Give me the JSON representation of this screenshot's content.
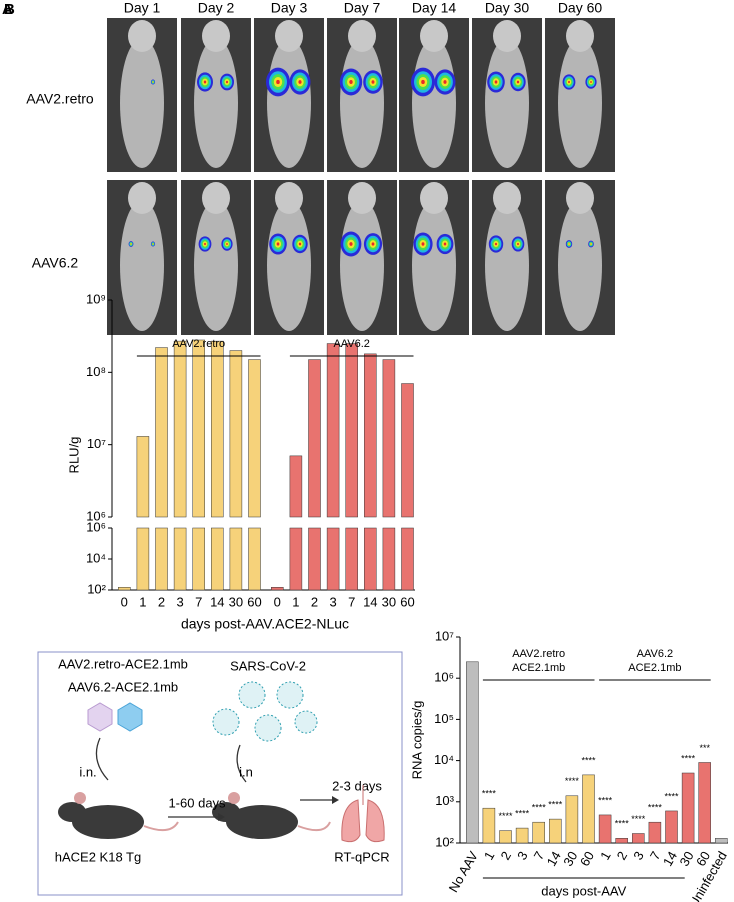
{
  "panel_labels": [
    "A",
    "B"
  ],
  "panel_a": {
    "days": [
      "Day 1",
      "Day 2",
      "Day 3",
      "Day 7",
      "Day 14",
      "Day 30",
      "Day 60"
    ],
    "rows": [
      "AAV2.retro",
      "AAV6.2"
    ]
  },
  "schematic": {
    "vectors": [
      "AAV2.retro-ACE2.1mb",
      "AAV6.2-ACE2.1mb"
    ],
    "virus": "SARS-CoV-2",
    "route1": "i.n.",
    "route2": "i.n",
    "interval1": "1-60 days",
    "interval2": "2-3 days",
    "mouse": "hACE2 K18 Tg",
    "readout": "RT-qPCR"
  },
  "chart_data": [
    {
      "type": "bar",
      "log_y": true,
      "y_label": "RLU/g",
      "x_label": "days post-AAV.ACE2-NLuc",
      "segments": [
        {
          "ylim": [
            100,
            1000000
          ],
          "yticks": [
            {
              "value": 100,
              "label": "10²"
            },
            {
              "value": 10000,
              "label": "10⁴"
            },
            {
              "value": 1000000,
              "label": "10⁶"
            }
          ]
        },
        {
          "ylim": [
            1000000,
            1000000000
          ],
          "yticks": [
            {
              "value": 1000000,
              "label": "10⁶"
            },
            {
              "value": 10000000,
              "label": "10⁷"
            },
            {
              "value": 100000000,
              "label": "10⁸"
            },
            {
              "value": 1000000000,
              "label": "10⁹"
            }
          ]
        }
      ],
      "series": [
        {
          "name": "AAV2.retro",
          "color": "#f6d27a",
          "categories": [
            "0",
            "1",
            "2",
            "3",
            "7",
            "14",
            "30",
            "60"
          ],
          "values": [
            150,
            13000000,
            220000000,
            270000000,
            280000000,
            270000000,
            200000000,
            150000000
          ]
        },
        {
          "name": "AAV6.2",
          "color": "#e8736f",
          "categories": [
            "0",
            "1",
            "2",
            "3",
            "7",
            "14",
            "30",
            "60"
          ],
          "values": [
            150,
            7000000,
            150000000,
            250000000,
            250000000,
            180000000,
            150000000,
            70000000
          ]
        }
      ]
    },
    {
      "type": "bar",
      "log_y": true,
      "y_label": "RNA copies/g",
      "x_label": "days post-AAV",
      "ylim": [
        100,
        10000000
      ],
      "yticks": [
        {
          "value": 100,
          "label": "10²"
        },
        {
          "value": 1000,
          "label": "10³"
        },
        {
          "value": 10000,
          "label": "10⁴"
        },
        {
          "value": 100000,
          "label": "10⁵"
        },
        {
          "value": 1000000,
          "label": "10⁶"
        },
        {
          "value": 10000000,
          "label": "10⁷"
        }
      ],
      "series": [
        {
          "color": "#bdbdbd",
          "categories": [
            "No AAV"
          ],
          "values": [
            2500000
          ],
          "significance": [
            null
          ]
        },
        {
          "name": "AAV2.retro\nACE2.1mb",
          "color": "#f6d27a",
          "categories": [
            "1",
            "2",
            "3",
            "7",
            "14",
            "30",
            "60"
          ],
          "values": [
            700,
            200,
            230,
            320,
            380,
            1400,
            4500
          ],
          "significance": [
            "****",
            "****",
            "****",
            "****",
            "****",
            "****",
            "****"
          ]
        },
        {
          "name": "AAV6.2\nACE2.1mb",
          "color": "#e8736f",
          "categories": [
            "1",
            "2",
            "3",
            "7",
            "14",
            "30",
            "60"
          ],
          "values": [
            480,
            130,
            170,
            320,
            600,
            5000,
            9000
          ],
          "significance": [
            "****",
            "****",
            "****",
            "****",
            "****",
            "****",
            "***"
          ]
        },
        {
          "color": "#bdbdbd",
          "categories": [
            "Uninfected"
          ],
          "values": [
            130
          ],
          "significance": [
            null
          ]
        }
      ]
    }
  ]
}
